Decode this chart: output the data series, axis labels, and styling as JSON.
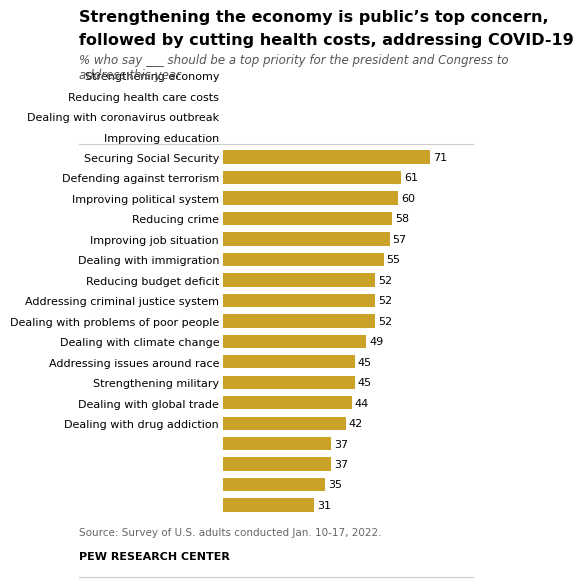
{
  "title_line1": "Strengthening the economy is public’s top concern,",
  "title_line2": "followed by cutting health costs, addressing COVID-19",
  "subtitle": "% who say ___ should be a top priority for the president and Congress to\naddress this year",
  "categories": [
    "Strengthening economy",
    "Reducing health care costs",
    "Dealing with coronavirus outbreak",
    "Improving education",
    "Securing Social Security",
    "Defending against terrorism",
    "Improving political system",
    "Reducing crime",
    "Improving job situation",
    "Dealing with immigration",
    "Reducing budget deficit",
    "Addressing criminal justice system",
    "Dealing with problems of poor people",
    "Dealing with climate change",
    "Addressing issues around race",
    "Strengthening military",
    "Dealing with global trade",
    "Dealing with drug addiction"
  ],
  "values": [
    71,
    61,
    60,
    58,
    57,
    55,
    52,
    52,
    52,
    49,
    45,
    45,
    44,
    42,
    37,
    37,
    35,
    31
  ],
  "bar_color": "#C9A227",
  "background_color": "#FFFFFF",
  "source_text": "Source: Survey of U.S. adults conducted Jan. 10-17, 2022.",
  "footer_text": "PEW RESEARCH CENTER",
  "xlim": [
    0,
    80
  ],
  "title_fontsize": 11.5,
  "subtitle_fontsize": 8.5,
  "label_fontsize": 8.0,
  "value_fontsize": 8.0,
  "source_fontsize": 7.5
}
